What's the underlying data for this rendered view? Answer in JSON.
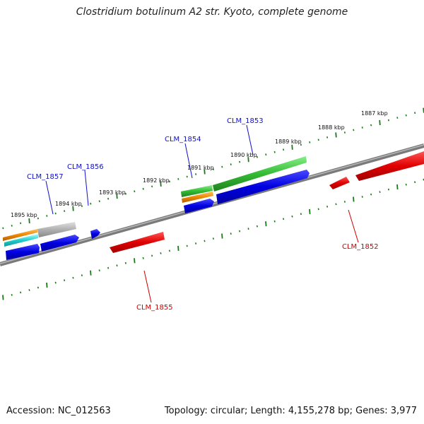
{
  "title": "Clostridium botulinum A2 str. Kyoto, complete genome",
  "footer": {
    "accession": "Accession: NC_012563",
    "topology": "Topology: circular; Length: 4,155,278 bp; Genes: 3,977"
  },
  "scale_labels": [
    "1887 kbp",
    "1888 kbp",
    "1889 kbp",
    "1890 kbp",
    "1891 kbp",
    "1892 kbp",
    "1893 kbp",
    "1894 kbp",
    "1895 kbp"
  ],
  "gene_labels": {
    "clm_1852": "CLM_1852",
    "clm_1853": "CLM_1853",
    "clm_1854": "CLM_1854",
    "clm_1855": "CLM_1855",
    "clm_1856": "CLM_1856",
    "clm_1857": "CLM_1857"
  },
  "colors": {
    "backbone": "#808080",
    "forward_cds": "#0000e0",
    "reverse_cds": "#e00000",
    "gene": "#33bb33",
    "rrna": "#ee8800",
    "trna": "#22cccc",
    "misc": "#b0b0b0",
    "ticks": "#1a7a1a"
  }
}
